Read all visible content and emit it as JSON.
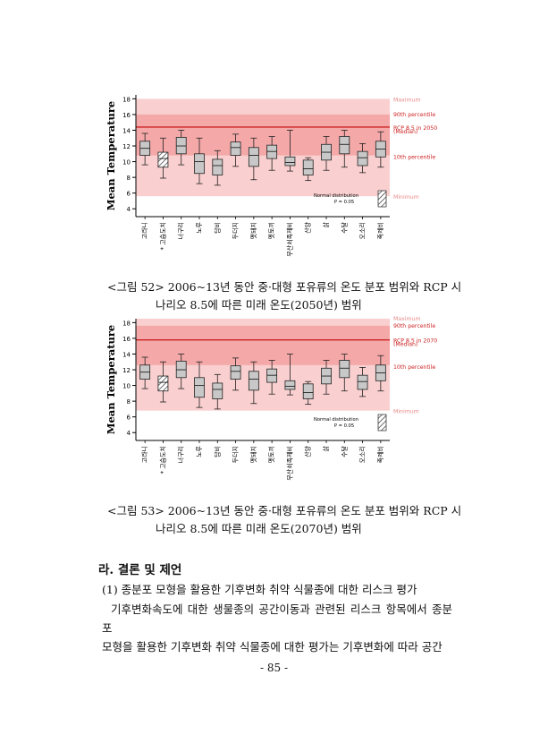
{
  "figures": [
    {
      "caption_line1": "<그림 52> 2006~13년 동안 중·대형 포유류의 온도 분포 범위와 RCP 시",
      "caption_line2": "나리오 8.5에 따른 미래 온도(2050년) 범위",
      "chart_data": {
        "type": "box",
        "ylabel": "Mean Temperature",
        "ylim": [
          3,
          18.5
        ],
        "yticks": [
          4,
          6,
          8,
          10,
          12,
          14,
          16,
          18
        ],
        "categories": [
          "고라니",
          "* 고슴도치",
          "너구리",
          "노루",
          "담비",
          "두더지",
          "멧돼지",
          "멧토끼",
          "무산쇠족제비",
          "산양",
          "삵",
          "수달",
          "오소리",
          "족제비"
        ],
        "boxes": [
          {
            "min": 9.6,
            "q1": 10.8,
            "median": 11.7,
            "q3": 12.6,
            "max": 13.6,
            "hatched": false
          },
          {
            "min": 7.9,
            "q1": 9.3,
            "median": 10.4,
            "q3": 11.2,
            "max": 13.0,
            "hatched": true
          },
          {
            "min": 9.6,
            "q1": 11.0,
            "median": 12.0,
            "q3": 13.1,
            "max": 14.0,
            "hatched": false
          },
          {
            "min": 7.2,
            "q1": 8.5,
            "median": 10.0,
            "q3": 11.0,
            "max": 13.0,
            "hatched": false
          },
          {
            "min": 7.0,
            "q1": 8.3,
            "median": 9.5,
            "q3": 10.3,
            "max": 11.4,
            "hatched": false
          },
          {
            "min": 9.4,
            "q1": 10.8,
            "median": 11.8,
            "q3": 12.5,
            "max": 13.5,
            "hatched": false
          },
          {
            "min": 7.7,
            "q1": 9.4,
            "median": 10.8,
            "q3": 11.8,
            "max": 13.0,
            "hatched": false
          },
          {
            "min": 8.9,
            "q1": 10.4,
            "median": 11.3,
            "q3": 12.1,
            "max": 13.2,
            "hatched": false
          },
          {
            "min": 8.8,
            "q1": 9.5,
            "median": 9.9,
            "q3": 10.6,
            "max": 14.0,
            "hatched": false
          },
          {
            "min": 7.6,
            "q1": 8.3,
            "median": 9.1,
            "q3": 10.2,
            "max": 10.5,
            "hatched": false
          },
          {
            "min": 8.9,
            "q1": 10.2,
            "median": 11.2,
            "q3": 12.2,
            "max": 13.2,
            "hatched": false
          },
          {
            "min": 9.3,
            "q1": 11.0,
            "median": 12.2,
            "q3": 13.2,
            "max": 14.0,
            "hatched": false
          },
          {
            "min": 8.6,
            "q1": 9.5,
            "median": 10.5,
            "q3": 11.3,
            "max": 12.3,
            "hatched": false
          },
          {
            "min": 9.3,
            "q1": 10.6,
            "median": 11.6,
            "q3": 12.6,
            "max": 13.8,
            "hatched": false
          }
        ],
        "bands": {
          "minimum": 5.6,
          "p10": 10.8,
          "p90": 16.0,
          "maximum": 18.0,
          "median": 14.4
        },
        "annotations": {
          "maximum": "Maximum",
          "p90": "90th percentile",
          "median_line1": "RCP 8.5 in 2050",
          "median_line2": "(Median)",
          "p10": "10th percentile",
          "minimum": "Minimum",
          "legend_line1": "Normal distribution",
          "legend_line2": "P = 0.05"
        },
        "colors": {
          "light_band": "#f9cfcf",
          "mid_band": "#f4a8a8",
          "median_line": "#cc2222",
          "label_light": "#e88a8a",
          "label_red": "#cc2222",
          "box_fill": "#c8c8c8"
        }
      }
    },
    {
      "caption_line1": "<그림 53> 2006~13년 동안 중·대형 포유류의 온도 분포 범위와 RCP 시",
      "caption_line2": "나리오 8.5에 따른 미래 온도(2070년) 범위",
      "chart_data": {
        "type": "box",
        "ylabel": "Mean Temperature",
        "ylim": [
          3,
          18.5
        ],
        "yticks": [
          4,
          6,
          8,
          10,
          12,
          14,
          16,
          18
        ],
        "categories": [
          "고라니",
          "* 고슴도치",
          "너구리",
          "노루",
          "담비",
          "두더지",
          "멧돼지",
          "멧토끼",
          "무산쇠족제비",
          "산양",
          "삵",
          "수달",
          "오소리",
          "족제비"
        ],
        "boxes": [
          {
            "min": 9.6,
            "q1": 10.8,
            "median": 11.7,
            "q3": 12.6,
            "max": 13.6,
            "hatched": false
          },
          {
            "min": 7.9,
            "q1": 9.3,
            "median": 10.4,
            "q3": 11.2,
            "max": 13.0,
            "hatched": true
          },
          {
            "min": 9.6,
            "q1": 11.0,
            "median": 12.0,
            "q3": 13.1,
            "max": 14.0,
            "hatched": false
          },
          {
            "min": 7.2,
            "q1": 8.5,
            "median": 10.0,
            "q3": 11.0,
            "max": 13.0,
            "hatched": false
          },
          {
            "min": 7.0,
            "q1": 8.3,
            "median": 9.5,
            "q3": 10.3,
            "max": 11.4,
            "hatched": false
          },
          {
            "min": 9.4,
            "q1": 10.8,
            "median": 11.8,
            "q3": 12.5,
            "max": 13.5,
            "hatched": false
          },
          {
            "min": 7.7,
            "q1": 9.4,
            "median": 10.8,
            "q3": 11.8,
            "max": 13.0,
            "hatched": false
          },
          {
            "min": 8.9,
            "q1": 10.4,
            "median": 11.3,
            "q3": 12.1,
            "max": 13.2,
            "hatched": false
          },
          {
            "min": 8.8,
            "q1": 9.5,
            "median": 9.9,
            "q3": 10.6,
            "max": 14.0,
            "hatched": false
          },
          {
            "min": 7.6,
            "q1": 8.3,
            "median": 9.1,
            "q3": 10.2,
            "max": 10.5,
            "hatched": false
          },
          {
            "min": 8.9,
            "q1": 10.2,
            "median": 11.2,
            "q3": 12.2,
            "max": 13.2,
            "hatched": false
          },
          {
            "min": 9.3,
            "q1": 11.0,
            "median": 12.2,
            "q3": 13.2,
            "max": 14.0,
            "hatched": false
          },
          {
            "min": 8.6,
            "q1": 9.5,
            "median": 10.5,
            "q3": 11.3,
            "max": 12.3,
            "hatched": false
          },
          {
            "min": 9.3,
            "q1": 10.6,
            "median": 11.6,
            "q3": 12.6,
            "max": 13.8,
            "hatched": false
          }
        ],
        "bands": {
          "minimum": 6.8,
          "p10": 12.6,
          "p90": 17.6,
          "maximum": 18.7,
          "median": 15.8
        },
        "annotations": {
          "maximum": "Maximum",
          "p90": "90th percentile",
          "median_line1": "RCP 8.5 in 2070",
          "median_line2": "(Median)",
          "p10": "10th percentile",
          "minimum": "Minimum",
          "legend_line1": "Normal distribution",
          "legend_line2": "P = 0.05"
        },
        "colors": {
          "light_band": "#f9cfcf",
          "mid_band": "#f4a8a8",
          "median_line": "#cc2222",
          "label_light": "#e88a8a",
          "label_red": "#cc2222",
          "box_fill": "#c8c8c8"
        }
      }
    }
  ],
  "section": {
    "title": "라. 결론 및 제언",
    "subsection": "(1) 종분포 모형을 활용한 기후변화 취약 식물종에 대한 리스크 평가",
    "paragraph_lines": [
      "기후변화속도에 대한 생물종의 공간이동과 관련된 리스크 항목에서 종분포",
      "모형을 활용한 기후변화 취약 식물종에 대한 평가는 기후변화에 따라 공간"
    ]
  },
  "page_number": "- 85 -"
}
